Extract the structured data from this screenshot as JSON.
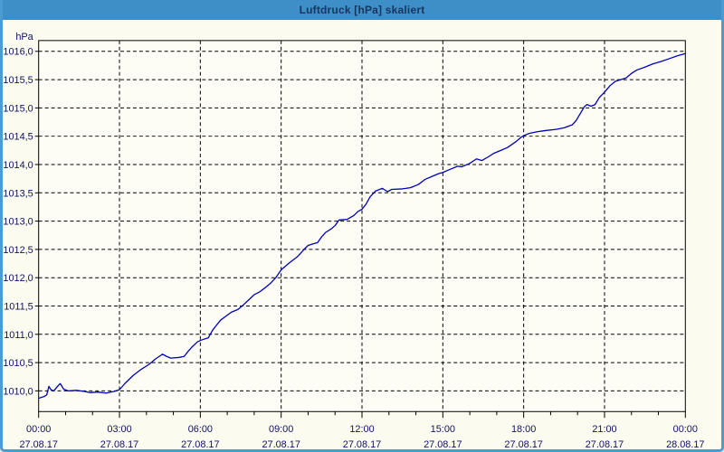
{
  "window": {
    "title": "Luftdruck [hPa] skaliert"
  },
  "colors": {
    "titlebar_bg": "#3E8EC8",
    "titlebar_text": "#17365D",
    "window_border": "#4C9CD4",
    "window_bg": "#FBFBEF",
    "plot_bg": "#FDFDF6",
    "frame": "#000000",
    "grid": "#000000",
    "axis_text": "#101060",
    "line": "#0000B2"
  },
  "chart_data": {
    "type": "line",
    "title": "Luftdruck [hPa] skaliert",
    "ylabel_unit": "hPa",
    "grid": "dashed",
    "ylim": [
      1009.6,
      1016.2
    ],
    "y_ticks": [
      {
        "value": 1016.0,
        "label": "1016,0"
      },
      {
        "value": 1015.5,
        "label": "1015,5"
      },
      {
        "value": 1015.0,
        "label": "1015,0"
      },
      {
        "value": 1014.5,
        "label": "1014,5"
      },
      {
        "value": 1014.0,
        "label": "1014,0"
      },
      {
        "value": 1013.5,
        "label": "1013,5"
      },
      {
        "value": 1013.0,
        "label": "1013,0"
      },
      {
        "value": 1012.5,
        "label": "1012,5"
      },
      {
        "value": 1012.0,
        "label": "1012,0"
      },
      {
        "value": 1011.5,
        "label": "1011,5"
      },
      {
        "value": 1011.0,
        "label": "1011,0"
      },
      {
        "value": 1010.5,
        "label": "1010,5"
      },
      {
        "value": 1010.0,
        "label": "1010,0"
      }
    ],
    "x_ticks": [
      {
        "hour": 0,
        "time": "00:00",
        "date": "27.08.17"
      },
      {
        "hour": 3,
        "time": "03:00",
        "date": "27.08.17"
      },
      {
        "hour": 6,
        "time": "06:00",
        "date": "27.08.17"
      },
      {
        "hour": 9,
        "time": "09:00",
        "date": "27.08.17"
      },
      {
        "hour": 12,
        "time": "12:00",
        "date": "27.08.17"
      },
      {
        "hour": 15,
        "time": "15:00",
        "date": "27.08.17"
      },
      {
        "hour": 18,
        "time": "18:00",
        "date": "27.08.17"
      },
      {
        "hour": 21,
        "time": "21:00",
        "date": "27.08.17"
      },
      {
        "hour": 24,
        "time": "00:00",
        "date": "28.08.17"
      }
    ],
    "x_minor_every_hours": 1,
    "x_range_hours": [
      0,
      24
    ],
    "series": [
      {
        "name": "Luftdruck",
        "color": "#0000B2",
        "points": [
          [
            0,
            1009.87
          ],
          [
            0.2,
            1009.9
          ],
          [
            0.3,
            1009.93
          ],
          [
            0.38,
            1010.08
          ],
          [
            0.46,
            1010.02
          ],
          [
            0.56,
            1010.0
          ],
          [
            0.7,
            1010.08
          ],
          [
            0.8,
            1010.13
          ],
          [
            0.93,
            1010.03
          ],
          [
            1.1,
            1010.0
          ],
          [
            1.4,
            1010.01
          ],
          [
            1.7,
            1009.99
          ],
          [
            1.9,
            1009.97
          ],
          [
            2.2,
            1009.98
          ],
          [
            2.5,
            1009.96
          ],
          [
            2.8,
            1009.99
          ],
          [
            3.0,
            1010.02
          ],
          [
            3.2,
            1010.13
          ],
          [
            3.5,
            1010.27
          ],
          [
            3.8,
            1010.38
          ],
          [
            4.1,
            1010.47
          ],
          [
            4.35,
            1010.57
          ],
          [
            4.6,
            1010.65
          ],
          [
            4.75,
            1010.61
          ],
          [
            4.9,
            1010.58
          ],
          [
            5.2,
            1010.59
          ],
          [
            5.4,
            1010.61
          ],
          [
            5.55,
            1010.7
          ],
          [
            5.7,
            1010.78
          ],
          [
            5.9,
            1010.87
          ],
          [
            6.05,
            1010.9
          ],
          [
            6.3,
            1010.94
          ],
          [
            6.45,
            1011.07
          ],
          [
            6.6,
            1011.16
          ],
          [
            6.75,
            1011.25
          ],
          [
            6.95,
            1011.32
          ],
          [
            7.15,
            1011.39
          ],
          [
            7.4,
            1011.44
          ],
          [
            7.6,
            1011.52
          ],
          [
            7.8,
            1011.61
          ],
          [
            8.0,
            1011.7
          ],
          [
            8.2,
            1011.75
          ],
          [
            8.4,
            1011.82
          ],
          [
            8.6,
            1011.9
          ],
          [
            8.8,
            1012.0
          ],
          [
            9.0,
            1012.14
          ],
          [
            9.3,
            1012.26
          ],
          [
            9.6,
            1012.37
          ],
          [
            9.85,
            1012.5
          ],
          [
            10.0,
            1012.57
          ],
          [
            10.2,
            1012.6
          ],
          [
            10.35,
            1012.62
          ],
          [
            10.5,
            1012.72
          ],
          [
            10.65,
            1012.8
          ],
          [
            10.85,
            1012.86
          ],
          [
            11.0,
            1012.92
          ],
          [
            11.15,
            1013.02
          ],
          [
            11.45,
            1013.03
          ],
          [
            11.7,
            1013.1
          ],
          [
            11.85,
            1013.17
          ],
          [
            12.0,
            1013.21
          ],
          [
            12.15,
            1013.3
          ],
          [
            12.3,
            1013.43
          ],
          [
            12.5,
            1013.53
          ],
          [
            12.75,
            1013.58
          ],
          [
            12.95,
            1013.52
          ],
          [
            13.1,
            1013.56
          ],
          [
            13.5,
            1013.57
          ],
          [
            13.8,
            1013.59
          ],
          [
            14.1,
            1013.65
          ],
          [
            14.35,
            1013.74
          ],
          [
            14.6,
            1013.79
          ],
          [
            14.85,
            1013.84
          ],
          [
            15.0,
            1013.86
          ],
          [
            15.3,
            1013.92
          ],
          [
            15.55,
            1013.97
          ],
          [
            15.7,
            1013.96
          ],
          [
            16.0,
            1014.02
          ],
          [
            16.25,
            1014.1
          ],
          [
            16.45,
            1014.07
          ],
          [
            16.7,
            1014.14
          ],
          [
            16.9,
            1014.2
          ],
          [
            17.1,
            1014.24
          ],
          [
            17.4,
            1014.3
          ],
          [
            17.7,
            1014.4
          ],
          [
            17.9,
            1014.48
          ],
          [
            18.0,
            1014.51
          ],
          [
            18.2,
            1014.55
          ],
          [
            18.5,
            1014.58
          ],
          [
            18.8,
            1014.6
          ],
          [
            19.2,
            1014.62
          ],
          [
            19.5,
            1014.65
          ],
          [
            19.8,
            1014.7
          ],
          [
            19.95,
            1014.78
          ],
          [
            20.1,
            1014.9
          ],
          [
            20.25,
            1015.02
          ],
          [
            20.35,
            1015.06
          ],
          [
            20.5,
            1015.03
          ],
          [
            20.65,
            1015.06
          ],
          [
            20.8,
            1015.18
          ],
          [
            21.0,
            1015.28
          ],
          [
            21.2,
            1015.39
          ],
          [
            21.4,
            1015.47
          ],
          [
            21.6,
            1015.5
          ],
          [
            21.8,
            1015.53
          ],
          [
            22.0,
            1015.61
          ],
          [
            22.2,
            1015.67
          ],
          [
            22.5,
            1015.72
          ],
          [
            22.8,
            1015.78
          ],
          [
            23.1,
            1015.82
          ],
          [
            23.4,
            1015.87
          ],
          [
            23.7,
            1015.92
          ],
          [
            24.0,
            1015.96
          ]
        ]
      }
    ]
  }
}
